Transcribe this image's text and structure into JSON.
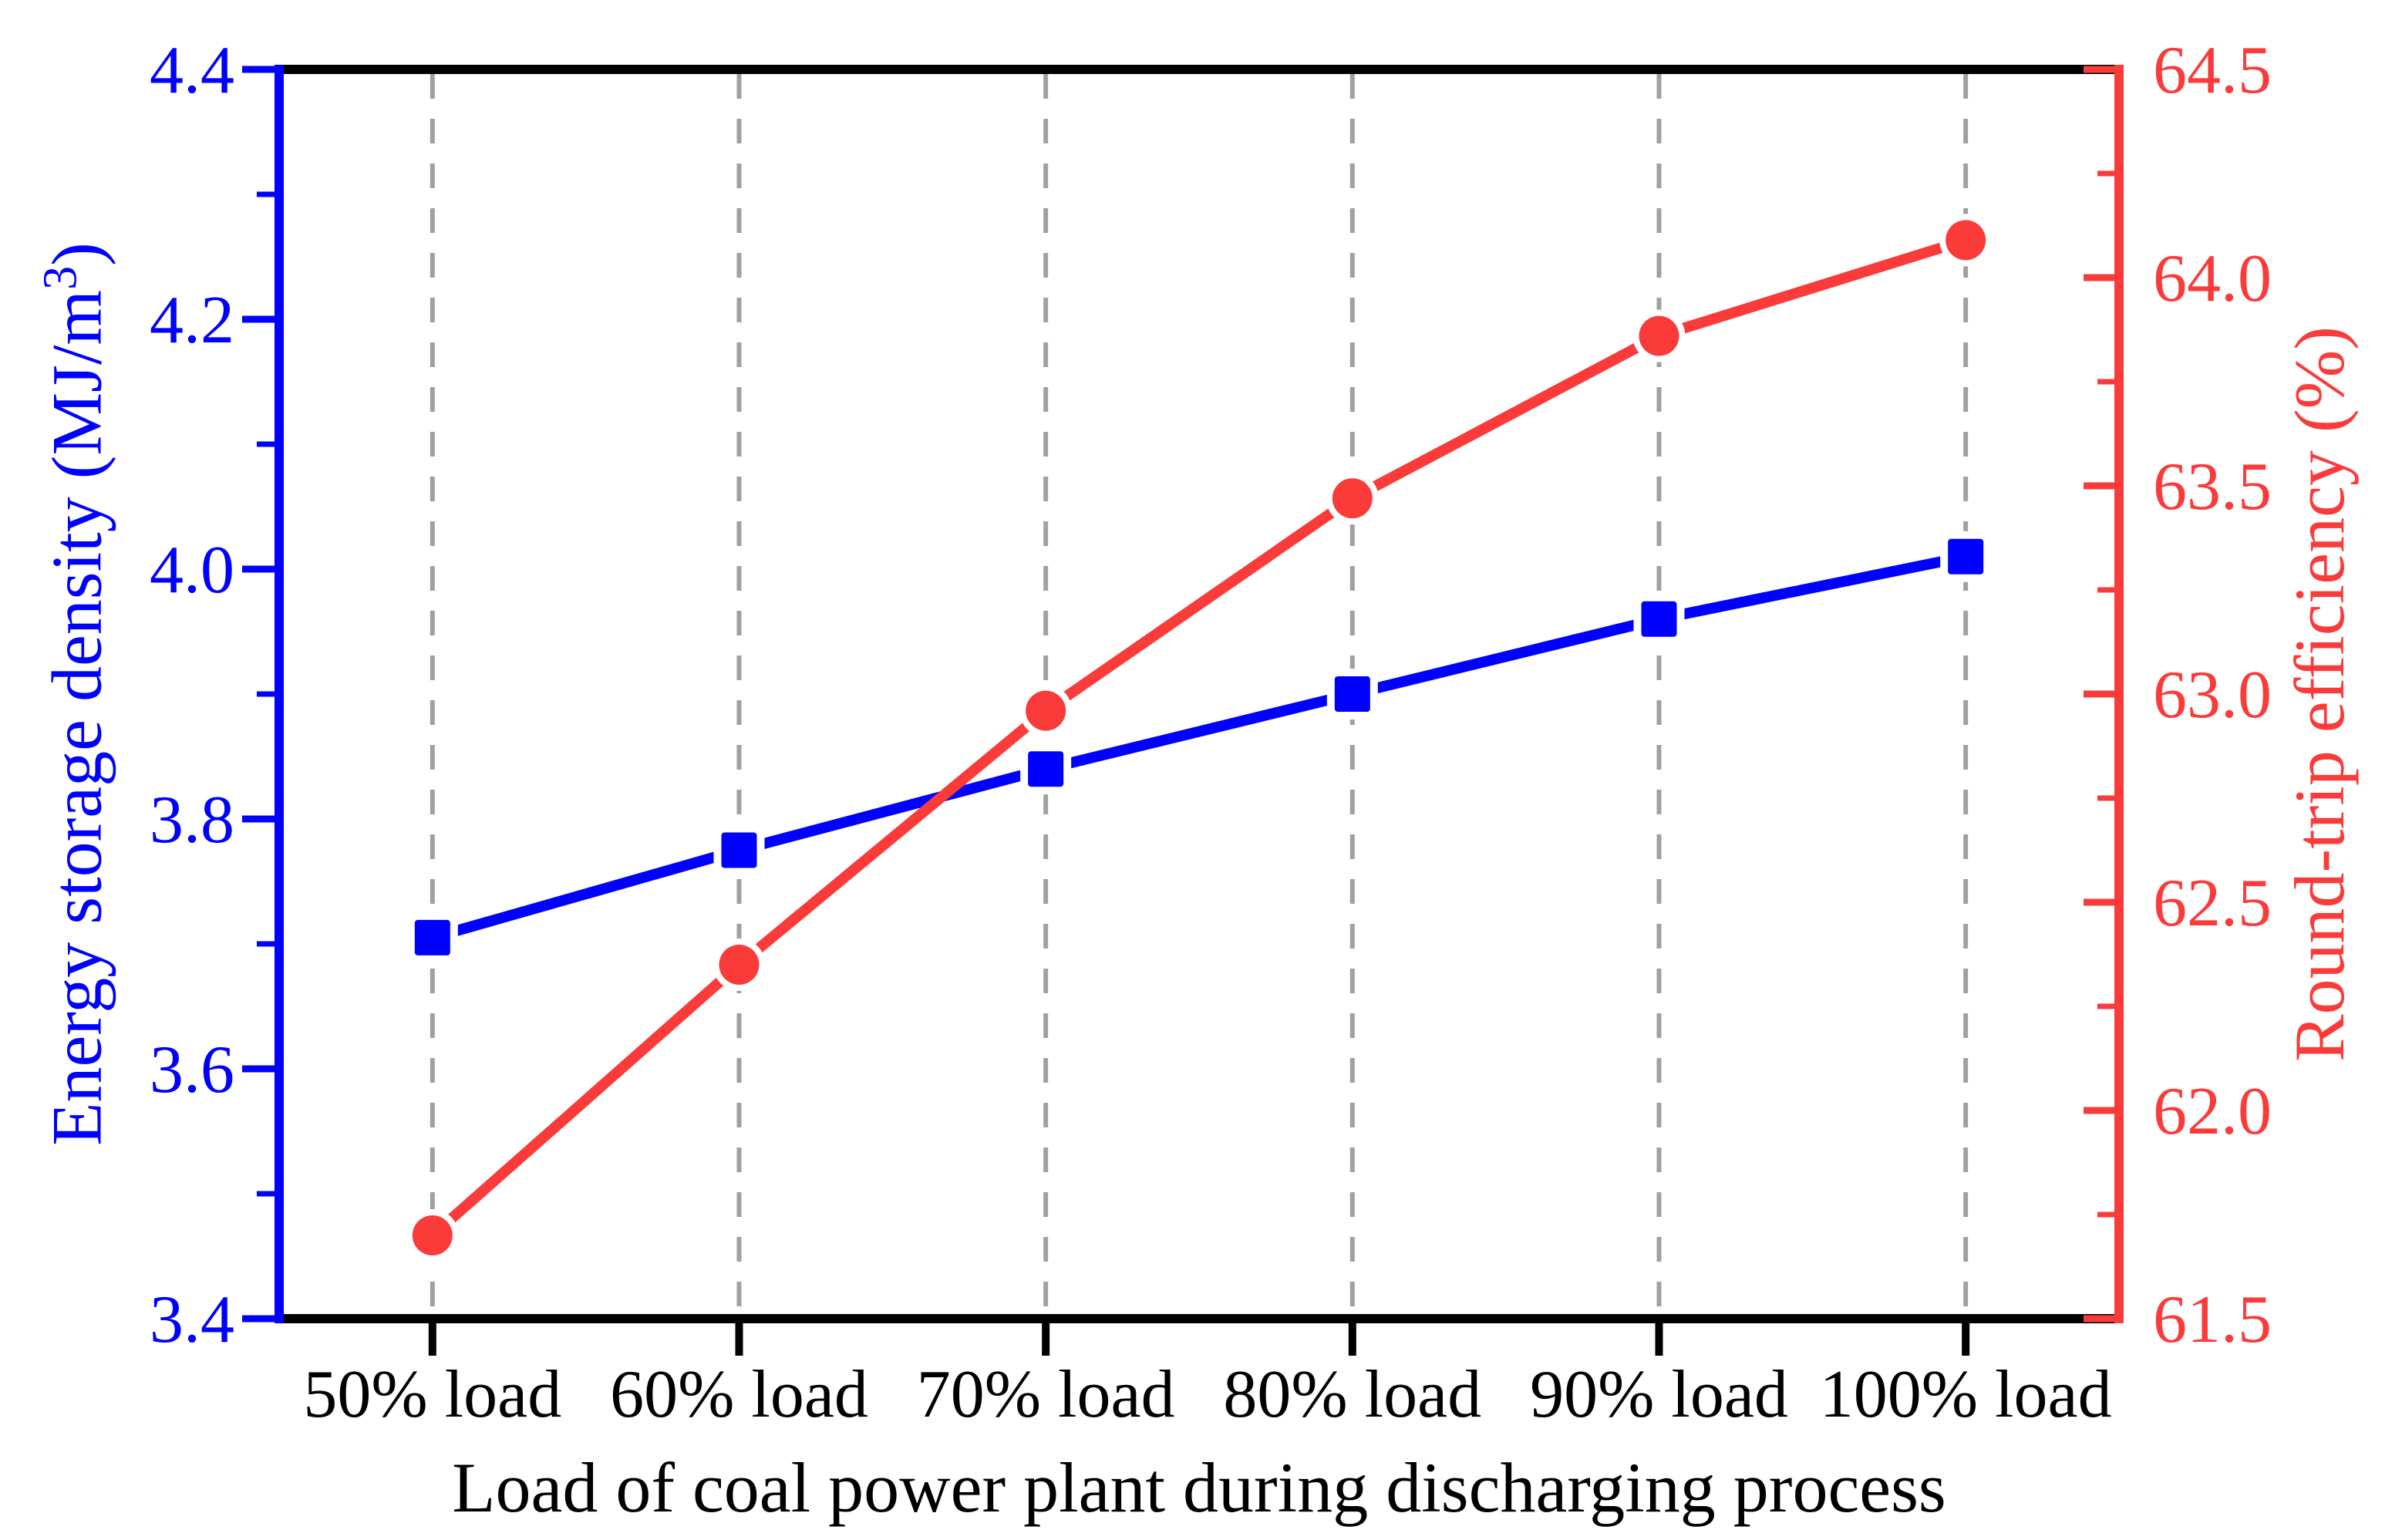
{
  "chart_data": {
    "type": "line",
    "categories": [
      "50% load",
      "60% load",
      "70% load",
      "80% load",
      "90% load",
      "100% load"
    ],
    "x_axis": {
      "title": "Load of coal power plant during discharging process",
      "color": "#000000"
    },
    "y_left": {
      "title_main": "Energy storage density (MJ/m",
      "title_sup": "3",
      "title_close": ")",
      "min": 3.4,
      "max": 4.4,
      "major_step": 0.2,
      "ticks": [
        "3.4",
        "3.6",
        "3.8",
        "4.0",
        "4.2",
        "4.4"
      ],
      "color": "#0000FF"
    },
    "y_right": {
      "title": "Round-trip efficiency (%)",
      "min": 61.5,
      "max": 64.5,
      "major_step": 0.5,
      "ticks": [
        "61.5",
        "62.0",
        "62.5",
        "63.0",
        "63.5",
        "64.0",
        "64.5"
      ],
      "color": "#FA3B39"
    },
    "series": [
      {
        "name": "Energy storage density",
        "axis": "left",
        "color": "#0000FF",
        "marker": "square",
        "values": [
          3.705,
          3.775,
          3.84,
          3.9,
          3.96,
          4.01
        ]
      },
      {
        "name": "Round-trip efficiency",
        "axis": "right",
        "color": "#FA3B39",
        "marker": "circle",
        "values": [
          61.7,
          62.35,
          62.96,
          63.47,
          63.86,
          64.09
        ]
      }
    ],
    "grid": {
      "show": true,
      "color": "#A0A0A0"
    },
    "legend": {
      "show": false
    }
  }
}
